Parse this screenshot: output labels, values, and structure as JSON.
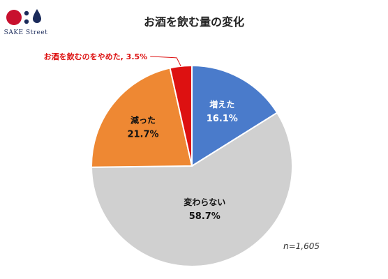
{
  "brand": {
    "name": "SAKE Street"
  },
  "chart_data": {
    "type": "pie",
    "title": "お酒を飲む量の変化",
    "sample_note": "n=1,605",
    "slices": [
      {
        "label": "増えた",
        "value": 16.1,
        "value_label": "16.1%",
        "color": "#4A7BCB",
        "text_color": "#ffffff"
      },
      {
        "label": "変わらない",
        "value": 58.7,
        "value_label": "58.7%",
        "color": "#D0D0D0",
        "text_color": "#111111"
      },
      {
        "label": "減った",
        "value": 21.7,
        "value_label": "21.7%",
        "color": "#EE8833",
        "text_color": "#111111"
      },
      {
        "label": "お酒を飲むのをやめた, 3.5%",
        "value": 3.5,
        "value_label": "",
        "color": "#DD1111",
        "text_color": "#DD1111",
        "callout": true
      }
    ]
  },
  "colors": {
    "logo_red": "#C8102E",
    "logo_navy": "#1A2A5A"
  }
}
